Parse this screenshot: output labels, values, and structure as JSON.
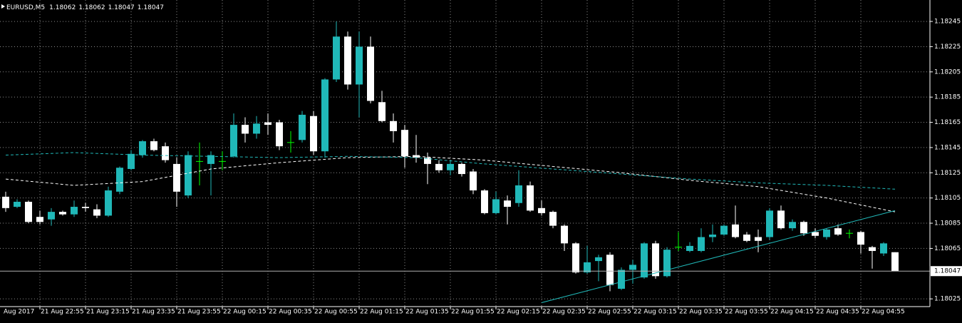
{
  "chart_data": {
    "type": "candlestick",
    "title": "EURUSD,M5",
    "colors": {
      "up": "#20b8b8",
      "down": "#ffffff",
      "doji": "#00ff00",
      "grid": "#8a8a8a",
      "price_line": "#b0b0b0"
    },
    "grid": true,
    "x_edge_label": "Aug 2017",
    "categories": [
      null,
      null,
      null,
      "21 Aug 22:55",
      null,
      null,
      null,
      "21 Aug 23:15",
      null,
      null,
      null,
      "21 Aug 23:35",
      null,
      null,
      null,
      "21 Aug 23:55",
      null,
      null,
      null,
      "22 Aug 00:15",
      null,
      null,
      null,
      "22 Aug 00:35",
      null,
      null,
      null,
      "22 Aug 00:55",
      null,
      null,
      null,
      "22 Aug 01:15",
      null,
      null,
      null,
      "22 Aug 01:35",
      null,
      null,
      null,
      "22 Aug 01:55",
      null,
      null,
      null,
      "22 Aug 02:15",
      null,
      null,
      null,
      "22 Aug 02:35",
      null,
      null,
      null,
      "22 Aug 02:55",
      null,
      null,
      null,
      "22 Aug 03:15",
      null,
      null,
      null,
      "22 Aug 03:35",
      null,
      null,
      null,
      "22 Aug 03:55",
      null,
      null,
      null,
      "22 Aug 04:15",
      null,
      null,
      null,
      "22 Aug 04:35",
      null,
      null,
      null,
      "22 Aug 04:55",
      null,
      null,
      null
    ],
    "open": [
      1.18106,
      1.18098,
      1.18102,
      1.1809,
      1.18088,
      1.18094,
      1.18092,
      1.18098,
      1.18096,
      1.18091,
      1.1811,
      1.18128,
      1.18139,
      1.1815,
      1.18146,
      1.18132,
      1.18107,
      1.18134,
      1.18132,
      1.18134,
      1.18138,
      1.18163,
      1.18156,
      1.18165,
      1.18165,
      1.18149,
      1.18151,
      1.1817,
      1.18142,
      1.18199,
      1.18233,
      1.18195,
      1.18225,
      1.18181,
      1.18166,
      1.18159,
      1.18139,
      1.18137,
      1.18132,
      1.18127,
      1.18132,
      1.18126,
      1.18111,
      1.18093,
      1.18103,
      1.18101,
      1.18115,
      1.18097,
      1.18094,
      1.18083,
      1.18069,
      1.18046,
      1.18055,
      1.1806,
      1.18033,
      1.18048,
      1.18042,
      1.18069,
      1.18043,
      1.18066,
      1.18063,
      1.18063,
      1.18074,
      1.18076,
      1.18084,
      1.18076,
      1.18074,
      1.18074,
      1.18095,
      1.18081,
      1.18086,
      1.18078,
      1.18074,
      1.18081,
      1.18077,
      1.18078,
      1.18066,
      1.18061,
      1.18062
    ],
    "high": [
      1.1811,
      1.18104,
      1.18103,
      1.18095,
      1.18097,
      1.18095,
      1.18103,
      1.18101,
      1.181,
      1.18114,
      1.1813,
      1.18143,
      1.18151,
      1.18152,
      1.18149,
      1.18137,
      1.18142,
      1.18149,
      1.18142,
      1.18142,
      1.18172,
      1.18169,
      1.1817,
      1.18172,
      1.18167,
      1.18158,
      1.18174,
      1.18174,
      1.182,
      1.18245,
      1.18237,
      1.18237,
      1.18233,
      1.1819,
      1.18172,
      1.18163,
      1.18155,
      1.18141,
      1.18135,
      1.18135,
      1.18133,
      1.18128,
      1.18112,
      1.1811,
      1.18107,
      1.18127,
      1.18118,
      1.18103,
      1.18095,
      1.18084,
      1.1807,
      1.18067,
      1.1806,
      1.18062,
      1.1805,
      1.18056,
      1.1807,
      1.18071,
      1.18066,
      1.18078,
      1.1807,
      1.18081,
      1.18084,
      1.18084,
      1.18099,
      1.18078,
      1.1808,
      1.18097,
      1.18099,
      1.18088,
      1.18087,
      1.18081,
      1.18081,
      1.18084,
      1.1808,
      1.18079,
      1.18067,
      1.1807,
      1.18062
    ],
    "low": [
      1.18094,
      1.18097,
      1.18085,
      1.18084,
      1.18083,
      1.18091,
      1.1809,
      1.18094,
      1.18089,
      1.1809,
      1.18108,
      1.18127,
      1.18137,
      1.18142,
      1.18133,
      1.18098,
      1.18105,
      1.18115,
      1.18107,
      1.18127,
      1.18137,
      1.18149,
      1.18152,
      1.18155,
      1.18143,
      1.18141,
      1.18149,
      1.18139,
      1.18137,
      1.18197,
      1.18191,
      1.18169,
      1.1818,
      1.18165,
      1.18149,
      1.18129,
      1.18133,
      1.18116,
      1.18125,
      1.18123,
      1.18122,
      1.18108,
      1.18092,
      1.18092,
      1.18084,
      1.18098,
      1.18094,
      1.18091,
      1.18081,
      1.18063,
      1.18045,
      1.18045,
      1.18039,
      1.18031,
      1.18032,
      1.18037,
      1.18041,
      1.18041,
      1.18042,
      1.18063,
      1.18062,
      1.18062,
      1.1807,
      1.18075,
      1.18073,
      1.1807,
      1.18062,
      1.18072,
      1.1808,
      1.18079,
      1.18075,
      1.18073,
      1.18072,
      1.18075,
      1.18073,
      1.18061,
      1.18049,
      1.18059,
      1.18047
    ],
    "close": [
      1.18097,
      1.18102,
      1.18086,
      1.18086,
      1.18094,
      1.18092,
      1.18098,
      1.18097,
      1.18091,
      1.18111,
      1.18129,
      1.1814,
      1.1815,
      1.18143,
      1.18135,
      1.1811,
      1.18139,
      1.18134,
      1.18139,
      1.18134,
      1.18163,
      1.18156,
      1.18164,
      1.18163,
      1.18146,
      1.18149,
      1.18171,
      1.18142,
      1.18199,
      1.18233,
      1.18195,
      1.18225,
      1.18182,
      1.18166,
      1.18158,
      1.18138,
      1.18137,
      1.18132,
      1.18127,
      1.18132,
      1.18124,
      1.18111,
      1.18093,
      1.18104,
      1.18098,
      1.18115,
      1.18095,
      1.18093,
      1.18083,
      1.18069,
      1.18046,
      1.18054,
      1.18058,
      1.18036,
      1.18048,
      1.18052,
      1.18069,
      1.18043,
      1.18064,
      1.18066,
      1.18067,
      1.18074,
      1.18076,
      1.18083,
      1.18074,
      1.18071,
      1.18071,
      1.18095,
      1.18081,
      1.18086,
      1.18077,
      1.18075,
      1.1808,
      1.18076,
      1.18077,
      1.18068,
      1.18063,
      1.18069,
      1.18047
    ],
    "overlays": [
      {
        "kind": "line",
        "style": "dashed",
        "color": "#ffffff",
        "x": [
          0,
          6,
          12,
          18,
          24,
          30,
          36,
          42,
          48,
          54,
          60,
          66,
          72,
          78
        ],
        "values": [
          1.1812,
          1.18115,
          1.18118,
          1.18128,
          1.18133,
          1.18137,
          1.18138,
          1.18135,
          1.1813,
          1.18125,
          1.18119,
          1.18114,
          1.18105,
          1.18094
        ]
      },
      {
        "kind": "line",
        "style": "dashed",
        "color": "#20b8b8",
        "x": [
          0,
          6,
          12,
          18,
          24,
          30,
          36,
          42,
          48,
          54,
          60,
          66,
          72,
          78
        ],
        "values": [
          1.18139,
          1.18141,
          1.18139,
          1.18138,
          1.18137,
          1.18138,
          1.18137,
          1.18132,
          1.18128,
          1.18124,
          1.1812,
          1.18117,
          1.18115,
          1.18112
        ]
      },
      {
        "kind": "line",
        "style": "solid",
        "color": "#20b8b8",
        "x": [
          47,
          78
        ],
        "values": [
          1.18022,
          1.18095
        ]
      }
    ],
    "ylim": [
      1.1802,
      1.18262
    ],
    "yticks": [
      1.18245,
      1.18225,
      1.18205,
      1.18185,
      1.18165,
      1.18145,
      1.18125,
      1.18105,
      1.18085,
      1.18065,
      1.18025
    ]
  }
}
